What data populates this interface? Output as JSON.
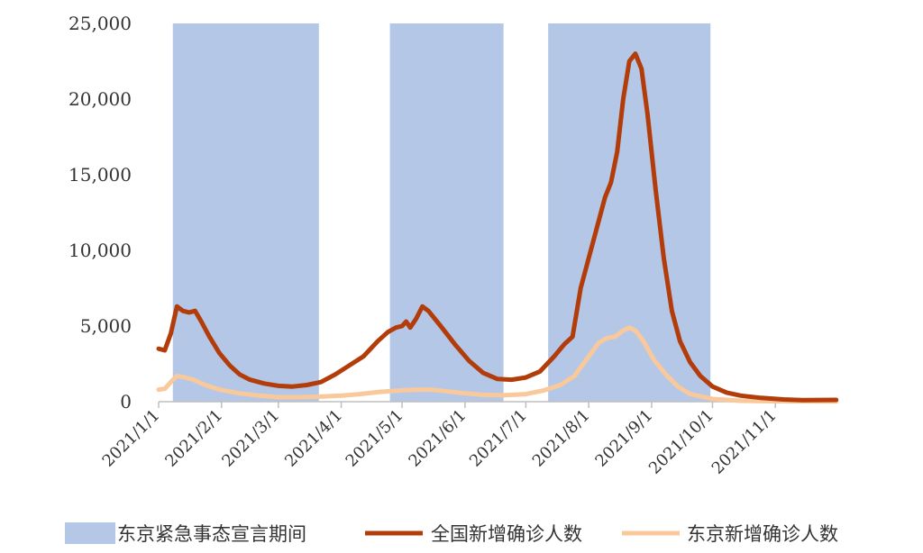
{
  "chart_data": {
    "type": "line",
    "title": "",
    "xlabel": "",
    "ylabel": "",
    "x_range": [
      "2021-01-01",
      "2021-12-02"
    ],
    "ylim": [
      0,
      25000
    ],
    "grid": false,
    "legend_position": "bottom",
    "y_ticks": [
      "0",
      "5,000",
      "10,000",
      "15,000",
      "20,000",
      "25,000"
    ],
    "x_ticks": [
      {
        "date": "2021-01-01",
        "label": "2021/1/1"
      },
      {
        "date": "2021-02-01",
        "label": "2021/2/1"
      },
      {
        "date": "2021-03-01",
        "label": "2021/3/1"
      },
      {
        "date": "2021-04-01",
        "label": "2021/4/1"
      },
      {
        "date": "2021-05-01",
        "label": "2021/5/1"
      },
      {
        "date": "2021-06-01",
        "label": "2021/6/1"
      },
      {
        "date": "2021-07-01",
        "label": "2021/7/1"
      },
      {
        "date": "2021-08-01",
        "label": "2021/8/1"
      },
      {
        "date": "2021-09-01",
        "label": "2021/9/1"
      },
      {
        "date": "2021-10-01",
        "label": "2021/10/1"
      },
      {
        "date": "2021-11-01",
        "label": "2021/11/1"
      }
    ],
    "shaded_periods": {
      "name": "东京紧急事态宣言期间",
      "color": "#b4c7e7",
      "ranges": [
        [
          "2021-01-08",
          "2021-03-21"
        ],
        [
          "2021-04-25",
          "2021-06-20"
        ],
        [
          "2021-07-12",
          "2021-09-30"
        ]
      ]
    },
    "series": [
      {
        "name": "全国新增确诊人数",
        "color": "#b23c0a",
        "points": [
          [
            "2021-01-01",
            3500
          ],
          [
            "2021-01-04",
            3400
          ],
          [
            "2021-01-07",
            4500
          ],
          [
            "2021-01-10",
            6300
          ],
          [
            "2021-01-13",
            6000
          ],
          [
            "2021-01-16",
            5900
          ],
          [
            "2021-01-19",
            6000
          ],
          [
            "2021-01-22",
            5300
          ],
          [
            "2021-01-26",
            4300
          ],
          [
            "2021-01-31",
            3200
          ],
          [
            "2021-02-05",
            2400
          ],
          [
            "2021-02-10",
            1800
          ],
          [
            "2021-02-15",
            1450
          ],
          [
            "2021-02-22",
            1200
          ],
          [
            "2021-03-01",
            1050
          ],
          [
            "2021-03-08",
            1000
          ],
          [
            "2021-03-15",
            1100
          ],
          [
            "2021-03-22",
            1300
          ],
          [
            "2021-03-29",
            1800
          ],
          [
            "2021-04-05",
            2400
          ],
          [
            "2021-04-12",
            3000
          ],
          [
            "2021-04-19",
            4000
          ],
          [
            "2021-04-24",
            4600
          ],
          [
            "2021-04-28",
            4900
          ],
          [
            "2021-05-01",
            5000
          ],
          [
            "2021-05-03",
            5300
          ],
          [
            "2021-05-05",
            4900
          ],
          [
            "2021-05-08",
            5500
          ],
          [
            "2021-05-11",
            6300
          ],
          [
            "2021-05-14",
            6000
          ],
          [
            "2021-05-20",
            5000
          ],
          [
            "2021-05-27",
            3800
          ],
          [
            "2021-06-03",
            2700
          ],
          [
            "2021-06-10",
            1900
          ],
          [
            "2021-06-17",
            1500
          ],
          [
            "2021-06-24",
            1450
          ],
          [
            "2021-07-01",
            1600
          ],
          [
            "2021-07-08",
            2000
          ],
          [
            "2021-07-15",
            3000
          ],
          [
            "2021-07-20",
            3800
          ],
          [
            "2021-07-24",
            4300
          ],
          [
            "2021-07-28",
            7500
          ],
          [
            "2021-08-01",
            9500
          ],
          [
            "2021-08-05",
            11500
          ],
          [
            "2021-08-09",
            13500
          ],
          [
            "2021-08-12",
            14500
          ],
          [
            "2021-08-15",
            16500
          ],
          [
            "2021-08-18",
            20000
          ],
          [
            "2021-08-21",
            22500
          ],
          [
            "2021-08-24",
            23000
          ],
          [
            "2021-08-27",
            22000
          ],
          [
            "2021-08-30",
            19000
          ],
          [
            "2021-09-03",
            14000
          ],
          [
            "2021-09-07",
            9500
          ],
          [
            "2021-09-11",
            6000
          ],
          [
            "2021-09-15",
            4000
          ],
          [
            "2021-09-20",
            2600
          ],
          [
            "2021-09-25",
            1700
          ],
          [
            "2021-10-01",
            1000
          ],
          [
            "2021-10-08",
            600
          ],
          [
            "2021-10-15",
            400
          ],
          [
            "2021-10-25",
            250
          ],
          [
            "2021-11-05",
            150
          ],
          [
            "2021-11-15",
            100
          ],
          [
            "2021-12-01",
            120
          ]
        ]
      },
      {
        "name": "东京新增确诊人数",
        "color": "#f9c89b",
        "points": [
          [
            "2021-01-01",
            800
          ],
          [
            "2021-01-04",
            850
          ],
          [
            "2021-01-07",
            1300
          ],
          [
            "2021-01-10",
            1700
          ],
          [
            "2021-01-14",
            1600
          ],
          [
            "2021-01-18",
            1450
          ],
          [
            "2021-01-24",
            1100
          ],
          [
            "2021-01-31",
            800
          ],
          [
            "2021-02-10",
            550
          ],
          [
            "2021-02-20",
            400
          ],
          [
            "2021-03-01",
            300
          ],
          [
            "2021-03-10",
            300
          ],
          [
            "2021-03-20",
            330
          ],
          [
            "2021-04-01",
            400
          ],
          [
            "2021-04-10",
            500
          ],
          [
            "2021-04-20",
            650
          ],
          [
            "2021-05-01",
            750
          ],
          [
            "2021-05-10",
            800
          ],
          [
            "2021-05-15",
            800
          ],
          [
            "2021-05-22",
            700
          ],
          [
            "2021-06-01",
            550
          ],
          [
            "2021-06-10",
            450
          ],
          [
            "2021-06-20",
            420
          ],
          [
            "2021-07-01",
            500
          ],
          [
            "2021-07-10",
            750
          ],
          [
            "2021-07-18",
            1100
          ],
          [
            "2021-07-25",
            1700
          ],
          [
            "2021-08-01",
            3000
          ],
          [
            "2021-08-06",
            3900
          ],
          [
            "2021-08-10",
            4200
          ],
          [
            "2021-08-14",
            4300
          ],
          [
            "2021-08-18",
            4700
          ],
          [
            "2021-08-21",
            4900
          ],
          [
            "2021-08-24",
            4700
          ],
          [
            "2021-08-28",
            4000
          ],
          [
            "2021-09-02",
            2800
          ],
          [
            "2021-09-08",
            1800
          ],
          [
            "2021-09-14",
            1000
          ],
          [
            "2021-09-20",
            500
          ],
          [
            "2021-10-01",
            180
          ],
          [
            "2021-10-15",
            60
          ],
          [
            "2021-11-01",
            30
          ],
          [
            "2021-12-01",
            20
          ]
        ]
      }
    ],
    "legend": [
      {
        "label": "东京紧急事态宣言期间",
        "kind": "area",
        "color": "#b4c7e7"
      },
      {
        "label": "全国新增确诊人数",
        "kind": "line",
        "color": "#b23c0a"
      },
      {
        "label": "东京新增确诊人数",
        "kind": "line",
        "color": "#f9c89b"
      }
    ]
  }
}
